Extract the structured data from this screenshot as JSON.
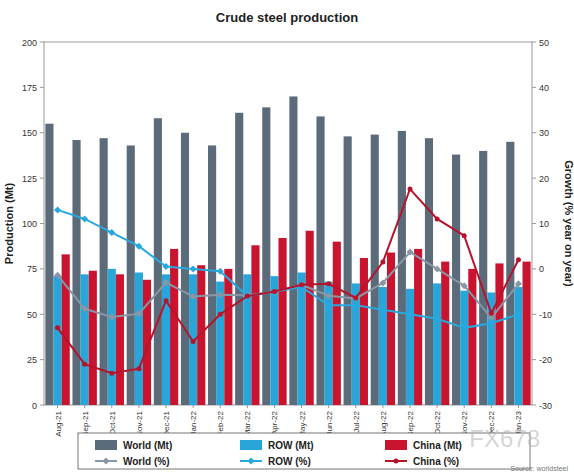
{
  "chart_data": {
    "type": "bar",
    "title": "Crude steel production",
    "y_label": "Production (Mt)",
    "y2_label": "Growth (% year on year)",
    "source": "Source: worldsteel",
    "watermark": "FX678",
    "categories": [
      "Aug-21",
      "Sep-21",
      "Oct-21",
      "Nov-21",
      "Dec-21",
      "Jan-22",
      "Feb-22",
      "Mar-22",
      "Apr-22",
      "May-22",
      "Jun-22",
      "Jul-22",
      "Aug-22",
      "Sep-22",
      "Oct-22",
      "Nov-22",
      "Dec-22",
      "Jan-23"
    ],
    "ylim": [
      0,
      200
    ],
    "yticks": [
      0,
      25,
      50,
      75,
      100,
      125,
      150,
      175,
      200
    ],
    "y2lim": [
      -30,
      50
    ],
    "y2ticks": [
      -30,
      -20,
      -10,
      0,
      10,
      20,
      30,
      40,
      50
    ],
    "grid": false,
    "legend": "bottom",
    "series": [
      {
        "name": "World (Mt)",
        "type": "bar",
        "color": "#5b6b7a",
        "values": [
          155,
          146,
          147,
          143,
          158,
          150,
          143,
          161,
          164,
          170,
          159,
          148,
          149,
          151,
          147,
          138,
          140,
          145
        ]
      },
      {
        "name": "ROW (Mt)",
        "type": "bar",
        "color": "#29a6d9",
        "values": [
          71,
          72,
          75,
          73,
          72,
          72,
          68,
          72,
          71,
          73,
          68,
          67,
          65,
          64,
          67,
          63,
          62,
          65
        ]
      },
      {
        "name": "China (Mt)",
        "type": "bar",
        "color": "#c8142e",
        "values": [
          83,
          74,
          72,
          69,
          86,
          77,
          75,
          88,
          92,
          96,
          90,
          81,
          84,
          86,
          79,
          75,
          78,
          79
        ]
      },
      {
        "name": "World (%)",
        "type": "line",
        "axis": "y2",
        "color": "#8797a6",
        "marker": "diamond",
        "values": [
          -1.4,
          -8.8,
          -10.6,
          -9.9,
          -3.0,
          -6.1,
          -5.7,
          -5.8,
          -5.1,
          -3.5,
          -5.9,
          -6.5,
          -3.1,
          3.7,
          0.0,
          -3.7,
          -10.8,
          -3.3
        ]
      },
      {
        "name": "ROW (%)",
        "type": "line",
        "axis": "y2",
        "color": "#29a8df",
        "marker": "diamond",
        "values": [
          13,
          11,
          8,
          5,
          0.5,
          0,
          -0.5,
          -6,
          -5,
          -4,
          -8,
          -8,
          -9,
          -10,
          -11,
          -13,
          -12,
          -10
        ]
      },
      {
        "name": "China (%)",
        "type": "line",
        "axis": "y2",
        "color": "#b5142b",
        "marker": "circle",
        "values": [
          -13,
          -21,
          -23,
          -22,
          -7,
          -16,
          -10,
          -6,
          -5,
          -3.5,
          -3.3,
          -6.4,
          1.5,
          17.6,
          11,
          7.3,
          -9.8,
          2
        ]
      }
    ]
  }
}
